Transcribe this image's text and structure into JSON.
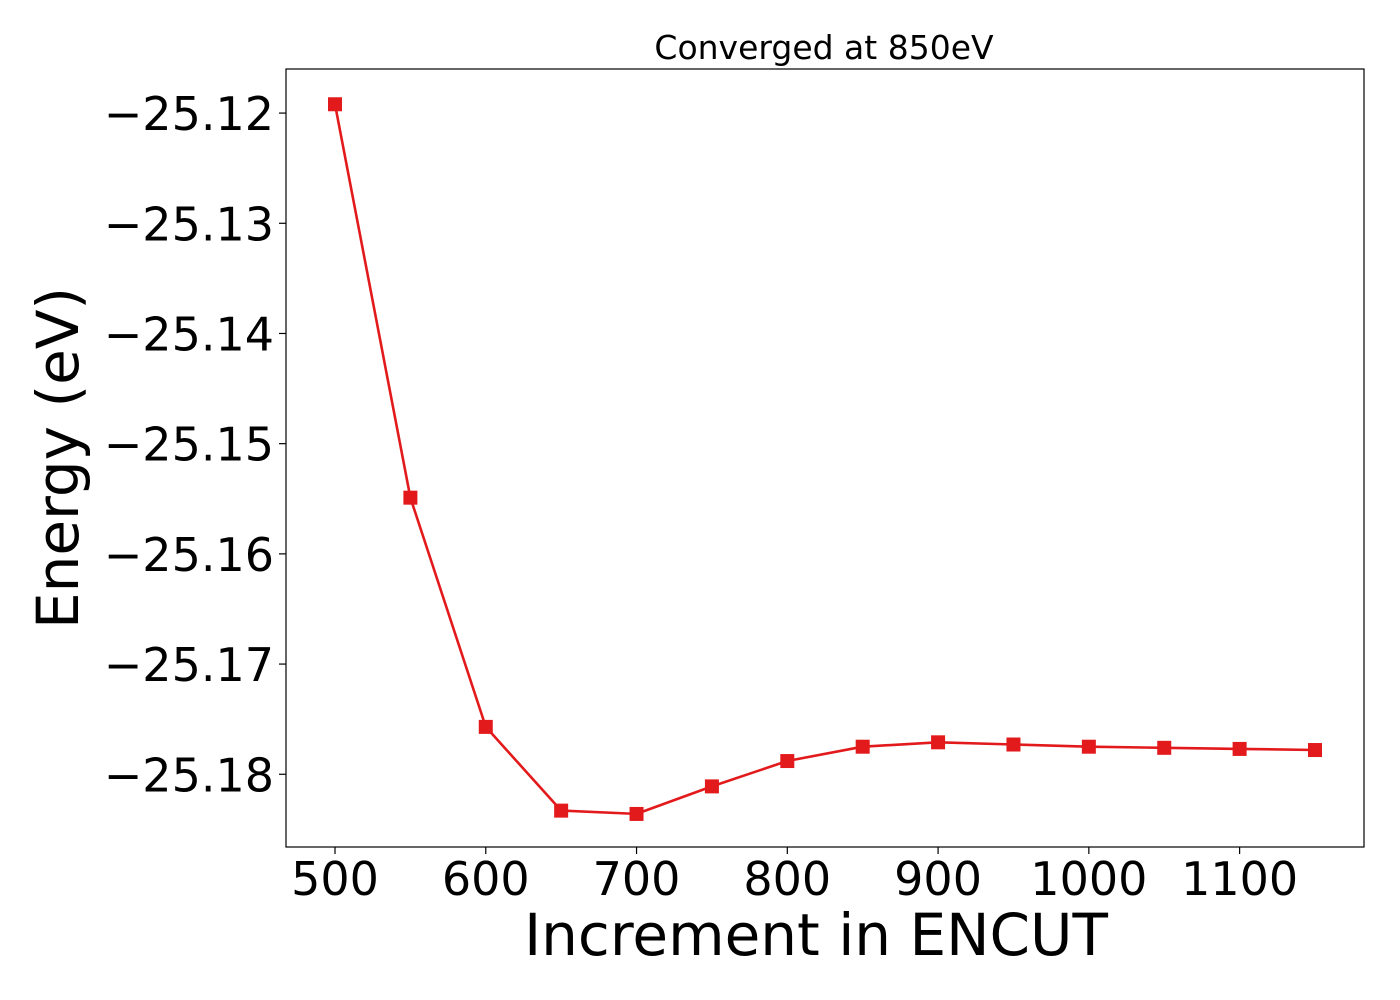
{
  "chart_data": {
    "type": "line",
    "title": "Converged at 850eV",
    "xlabel": "Increment in ENCUT",
    "ylabel": "Energy (eV)",
    "xlim": [
      467.5,
      1182.5
    ],
    "ylim": [
      -25.1866,
      -25.116
    ],
    "xticks": [
      500,
      600,
      700,
      800,
      900,
      1000,
      1100
    ],
    "xtick_labels": [
      "500",
      "600",
      "700",
      "800",
      "900",
      "1000",
      "1100"
    ],
    "yticks": [
      -25.12,
      -25.13,
      -25.14,
      -25.15,
      -25.16,
      -25.17,
      -25.18
    ],
    "ytick_labels": [
      "−25.12",
      "−25.13",
      "−25.14",
      "−25.15",
      "−25.16",
      "−25.17",
      "−25.18"
    ],
    "grid": false,
    "legend": "none",
    "series": [
      {
        "color": "#e31a1c",
        "marker": "square",
        "x": [
          500,
          550,
          600,
          650,
          700,
          750,
          800,
          850,
          900,
          950,
          1000,
          1050,
          1100,
          1150
        ],
        "y": [
          -25.1192,
          -25.1549,
          -25.1757,
          -25.1833,
          -25.1836,
          -25.1811,
          -25.1788,
          -25.1775,
          -25.1771,
          -25.1773,
          -25.1775,
          -25.1776,
          -25.1777,
          -25.1778
        ]
      }
    ]
  }
}
